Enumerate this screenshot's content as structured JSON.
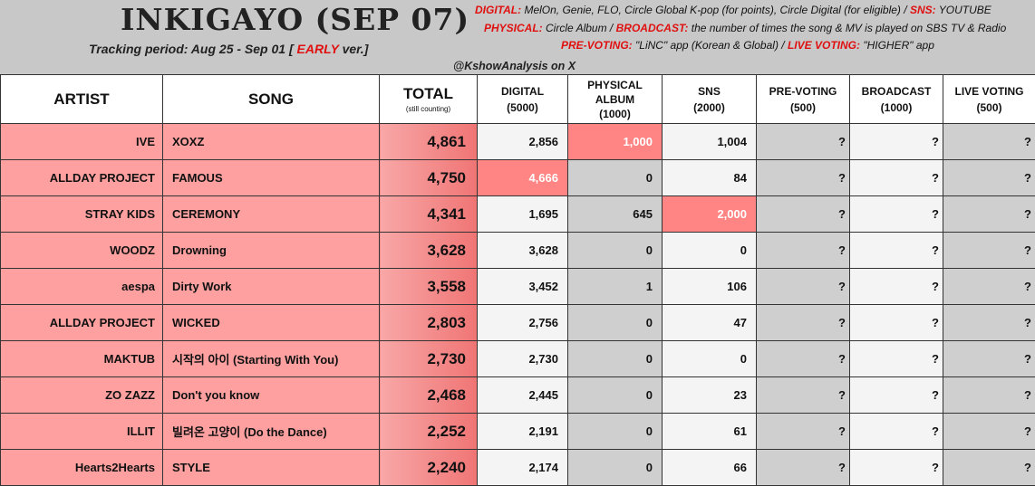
{
  "header": {
    "title": "INKIGAYO (SEP 07)",
    "tracking_label": "Tracking period: Aug 25 - Sep 01",
    "bracket_open": "[",
    "early": "EARLY",
    "version": "ver.]",
    "handle": "@KshowAnalysis on X",
    "info": [
      {
        "k1": "DIGITAL:",
        "v1": "MelOn, Genie, FLO, Circle Global K-pop (for points), Circle Digital (for eligible) /",
        "k2": "SNS:",
        "v2": "YOUTUBE"
      },
      {
        "k1": "PHYSICAL:",
        "v1": "Circle Album /",
        "k2": "BROADCAST:",
        "v2": "the number of times the song & MV is played on SBS TV & Radio"
      },
      {
        "k1": "PRE-VOTING:",
        "v1": "\"LiNC\" app (Korean & Global) /",
        "k2": "LIVE VOTING:",
        "v2": "\"HIGHER\" app"
      }
    ]
  },
  "table": {
    "columns": {
      "artist": "ARTIST",
      "song": "SONG",
      "total": "TOTAL",
      "total_note": "(still counting)",
      "digital": "DIGITAL",
      "digital_max": "(5000)",
      "physical_1": "PHYSICAL",
      "physical_2": "ALBUM",
      "physical_max": "(1000)",
      "sns": "SNS",
      "sns_max": "(2000)",
      "prevoting": "PRE-VOTING",
      "prevoting_max": "(500)",
      "broadcast": "BROADCAST",
      "broadcast_max": "(1000)",
      "live": "LIVE VOTING",
      "live_max": "(500)"
    },
    "unknown": "?",
    "rows": [
      {
        "artist": "IVE",
        "song": "XOXZ",
        "total": "4,861",
        "digital": "2,856",
        "physical": "1,000",
        "sns": "1,004"
      },
      {
        "artist": "ALLDAY PROJECT",
        "song": "FAMOUS",
        "total": "4,750",
        "digital": "4,666",
        "physical": "0",
        "sns": "84"
      },
      {
        "artist": "STRAY KIDS",
        "song": "CEREMONY",
        "total": "4,341",
        "digital": "1,695",
        "physical": "645",
        "sns": "2,000"
      },
      {
        "artist": "WOODZ",
        "song": "Drowning",
        "total": "3,628",
        "digital": "3,628",
        "physical": "0",
        "sns": "0"
      },
      {
        "artist": "aespa",
        "song": "Dirty Work",
        "total": "3,558",
        "digital": "3,452",
        "physical": "1",
        "sns": "106"
      },
      {
        "artist": "ALLDAY PROJECT",
        "song": "WICKED",
        "total": "2,803",
        "digital": "2,756",
        "physical": "0",
        "sns": "47"
      },
      {
        "artist": "MAKTUB",
        "song": "시작의 아이 (Starting With You)",
        "total": "2,730",
        "digital": "2,730",
        "physical": "0",
        "sns": "0"
      },
      {
        "artist": "ZO ZAZZ",
        "song": "Don't you know",
        "total": "2,468",
        "digital": "2,445",
        "physical": "0",
        "sns": "23"
      },
      {
        "artist": "ILLIT",
        "song": "빌려온 고양이 (Do the Dance)",
        "total": "2,252",
        "digital": "2,191",
        "physical": "0",
        "sns": "61"
      },
      {
        "artist": "Hearts2Hearts",
        "song": "STYLE",
        "total": "2,240",
        "digital": "2,174",
        "physical": "0",
        "sns": "66"
      }
    ]
  }
}
